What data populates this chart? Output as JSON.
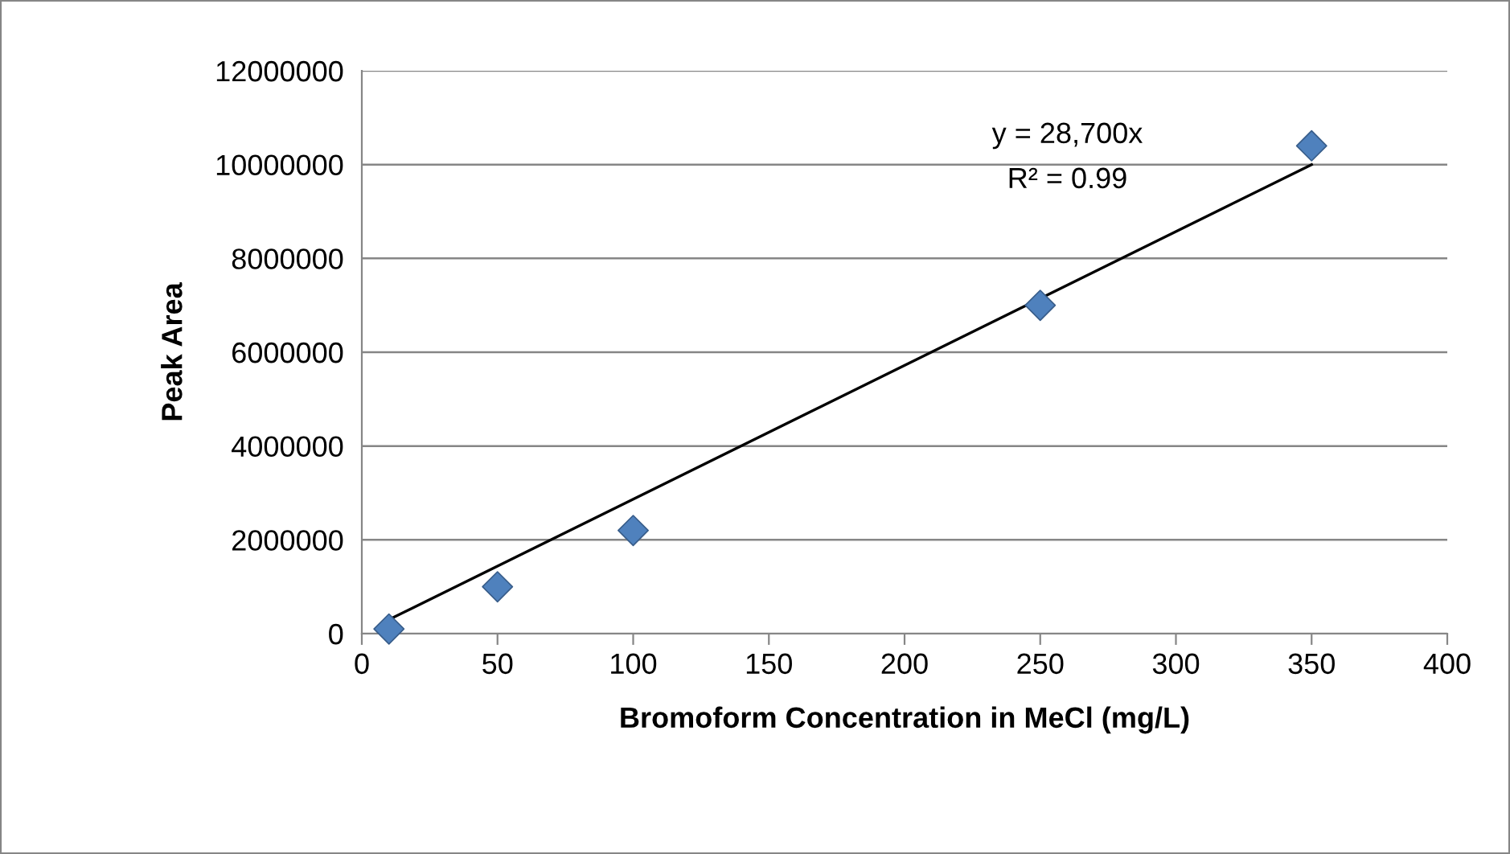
{
  "chart_data": {
    "type": "scatter",
    "xlabel": "Bromoform Concentration in MeCl (mg/L)",
    "ylabel": "Peak Area",
    "series": [
      {
        "color": "#4f81bd",
        "marker": "diamond",
        "x": [
          10,
          50,
          100,
          250,
          350
        ],
        "values": [
          100000,
          1000000,
          2200000,
          7000000,
          10400000
        ]
      },
      {
        "type": "line",
        "color": "#000000",
        "marker": "none",
        "line_style": "solid",
        "x": [
          10,
          350
        ],
        "values": [
          300000,
          10000000
        ]
      }
    ],
    "annotations": [
      "y = 28,700x",
      "R² = 0.99"
    ],
    "xlim": [
      0,
      400
    ],
    "xticks": [
      0,
      50,
      100,
      150,
      200,
      250,
      300,
      350,
      400
    ],
    "ylim": [
      0,
      12000000
    ],
    "yticks": [
      0,
      2000000,
      4000000,
      6000000,
      8000000,
      10000000,
      12000000
    ],
    "grid": "y",
    "legend": false
  }
}
